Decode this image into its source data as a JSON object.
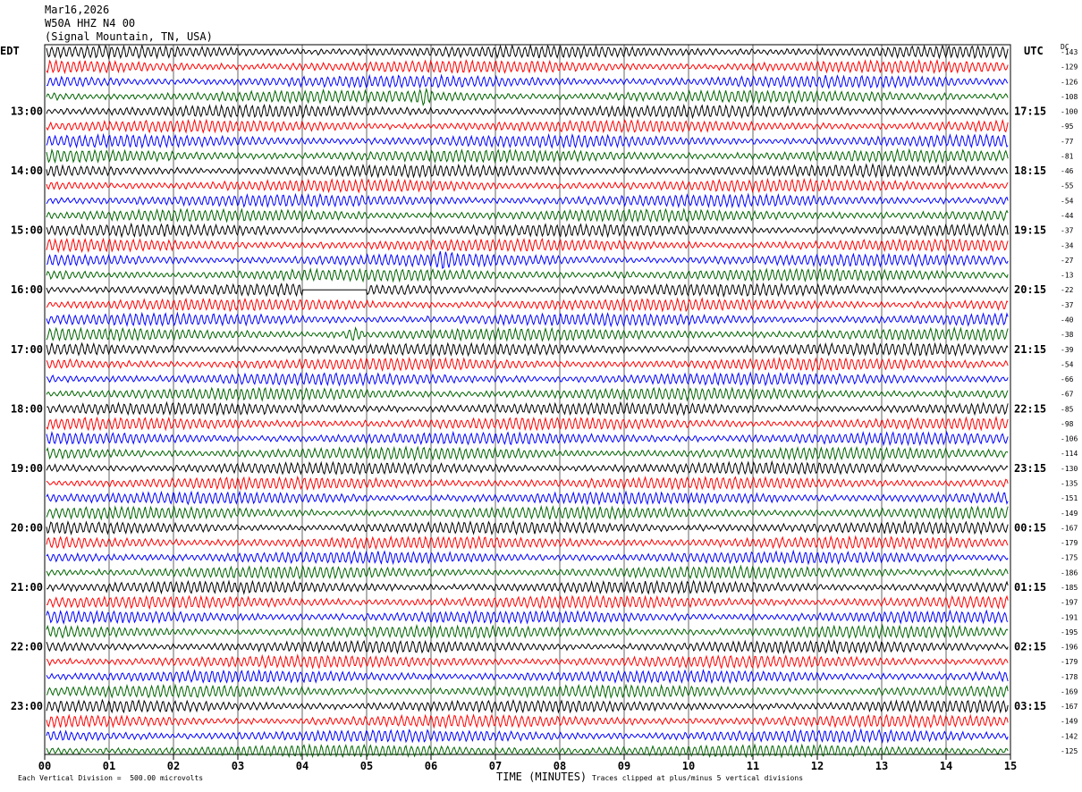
{
  "header": {
    "date": "Mar16,2026",
    "station": "W50A HHZ N4 00",
    "location": "(Signal Mountain, TN, USA)"
  },
  "left_axis_title": "EDT",
  "right_axis_title": "UTC",
  "dc_title": "DC",
  "footer": {
    "scale_note": "Each Vertical Division =  500.00 microvolts",
    "clip_note": "Traces clipped at plus/minus 5 vertical divisions",
    "xlabel": "TIME (MINUTES)"
  },
  "colors": {
    "trace_cycle": [
      "#000000",
      "#ff0000",
      "#0000ff",
      "#006400"
    ],
    "grid": "#000000"
  },
  "chart_data": {
    "type": "line",
    "xlabel": "TIME (MINUTES)",
    "xlim": [
      0,
      15
    ],
    "x_ticks": [
      "00",
      "01",
      "02",
      "03",
      "04",
      "05",
      "06",
      "07",
      "08",
      "09",
      "10",
      "11",
      "12",
      "13",
      "14",
      "15"
    ],
    "traces_per_hour": 4,
    "edt_hour_labels": [
      "13:00",
      "14:00",
      "15:00",
      "16:00",
      "17:00",
      "18:00",
      "19:00",
      "20:00",
      "21:00",
      "22:00",
      "23:00"
    ],
    "utc_hour_labels": [
      "17:15",
      "18:15",
      "19:15",
      "20:15",
      "21:15",
      "22:15",
      "23:15",
      "00:15",
      "01:15",
      "02:15",
      "03:15"
    ],
    "first_labeled_row": 4,
    "dc_offsets": [
      -143,
      -129,
      -126,
      -108,
      -100,
      -95,
      -77,
      -81,
      -46,
      -55,
      -54,
      -44,
      -37,
      -34,
      -27,
      -13,
      -22,
      -37,
      -40,
      -38,
      -39,
      -54,
      -66,
      -67,
      -85,
      -98,
      -106,
      -114,
      -130,
      -135,
      -151,
      -149,
      -167,
      -179,
      -175,
      -186,
      -185,
      -197,
      -191,
      -195,
      -196,
      -179,
      -178,
      -169,
      -167,
      -149,
      -142,
      -125
    ],
    "events": [
      {
        "row": 3,
        "minute": 5.9,
        "note": "burst"
      },
      {
        "row": 14,
        "minute": 6.2,
        "note": "burst"
      },
      {
        "row": 16,
        "minute_start": 4.0,
        "minute_end": 5.0,
        "note": "flat gap"
      },
      {
        "row": 19,
        "minute": 4.8,
        "note": "burst"
      }
    ]
  }
}
